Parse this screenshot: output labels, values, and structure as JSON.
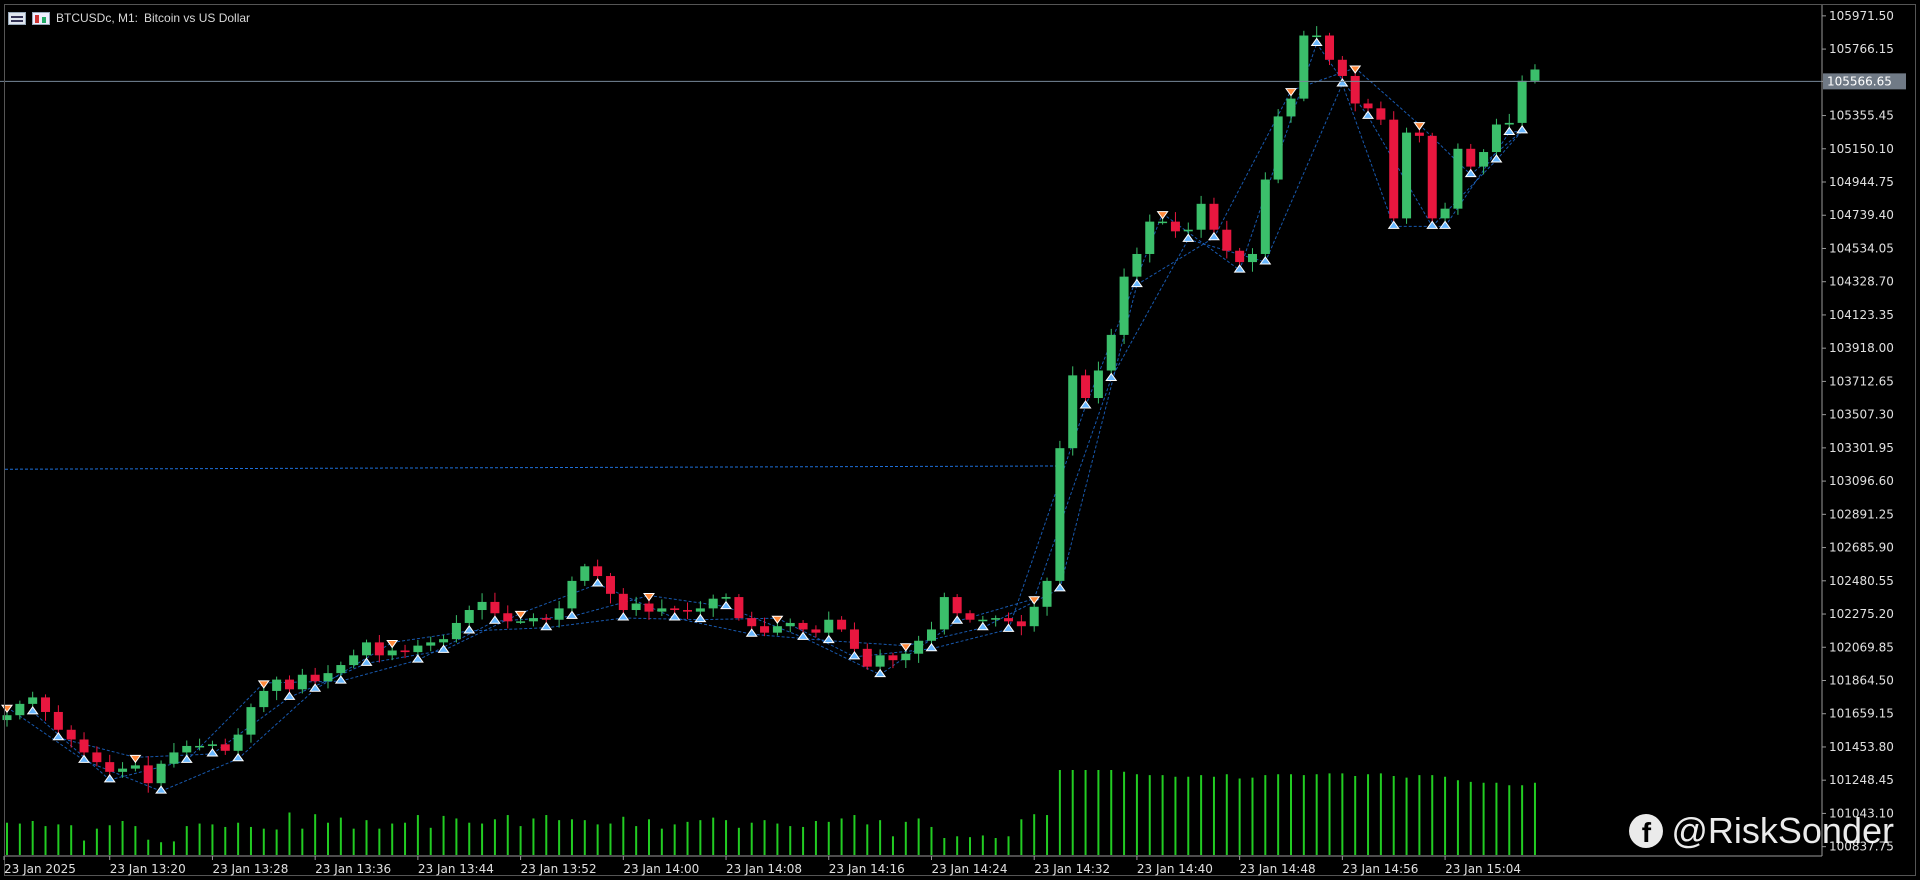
{
  "header": {
    "symbol_label": "BTCUSDc, M1:",
    "description": "Bitcoin vs US Dollar"
  },
  "watermark": {
    "icon": "facebook-icon",
    "text": "@RiskSonder"
  },
  "colors": {
    "background": "#000000",
    "bull": "#3bbf6b",
    "bear": "#e8173f",
    "volume": "#22cc22",
    "trend_line": "#1e6fd9",
    "axis_text": "#e0e0e0",
    "price_line": "#778899"
  },
  "chart_data": {
    "type": "candlestick",
    "timeframe": "M1",
    "current_price": 105566.65,
    "x_tick_labels": [
      "23 Jan 2025",
      "23 Jan 13:20",
      "23 Jan 13:28",
      "23 Jan 13:36",
      "23 Jan 13:44",
      "23 Jan 13:52",
      "23 Jan 14:00",
      "23 Jan 14:08",
      "23 Jan 14:16",
      "23 Jan 14:24",
      "23 Jan 14:32",
      "23 Jan 14:40",
      "23 Jan 14:48",
      "23 Jan 14:56",
      "23 Jan 15:04"
    ],
    "y_tick_labels": [
      "105971.50",
      "105766.15",
      "105566.65",
      "105355.45",
      "105150.10",
      "104944.75",
      "104739.40",
      "104534.05",
      "104328.70",
      "104123.35",
      "103918.00",
      "103712.65",
      "103507.30",
      "103301.95",
      "103096.60",
      "102891.25",
      "102685.90",
      "102480.55",
      "102275.20",
      "102069.85",
      "101864.50",
      "101659.15",
      "101453.80",
      "101248.45",
      "101043.10",
      "100837.75"
    ],
    "ylim": [
      100780,
      106020
    ],
    "closes": [
      101650,
      101720,
      101760,
      101670,
      101560,
      101500,
      101420,
      101360,
      101300,
      101320,
      101340,
      101230,
      101350,
      101420,
      101460,
      101460,
      101470,
      101430,
      101530,
      101700,
      101800,
      101870,
      101810,
      101900,
      101860,
      101910,
      101960,
      102020,
      102100,
      102020,
      102050,
      102040,
      102080,
      102100,
      102120,
      102220,
      102300,
      102350,
      102280,
      102230,
      102230,
      102250,
      102240,
      102310,
      102480,
      102570,
      102510,
      102400,
      102300,
      102340,
      102290,
      102310,
      102300,
      102290,
      102310,
      102370,
      102380,
      102250,
      102200,
      102160,
      102200,
      102220,
      102180,
      102160,
      102240,
      102180,
      102060,
      101950,
      102020,
      101990,
      102030,
      102110,
      102180,
      102380,
      102280,
      102240,
      102240,
      102250,
      102230,
      102200,
      102320,
      102480,
      103300,
      103750,
      103610,
      103780,
      104000,
      104360,
      104500,
      104700,
      104700,
      104640,
      104650,
      104810,
      104650,
      104520,
      104450,
      104500,
      104960,
      105350,
      105460,
      105850,
      105850,
      105700,
      105600,
      105430,
      105400,
      105330,
      104720,
      105250,
      105230,
      104720,
      104780,
      105150,
      105040,
      105130,
      105300,
      105310,
      105570,
      105640
    ],
    "volume_ylim": [
      0,
      100
    ],
    "volumes": [
      38,
      37,
      40,
      34,
      36,
      35,
      17,
      31,
      35,
      40,
      34,
      18,
      15,
      16,
      34,
      37,
      36,
      33,
      38,
      33,
      31,
      30,
      50,
      31,
      48,
      38,
      44,
      31,
      41,
      31,
      37,
      38,
      47,
      32,
      46,
      43,
      38,
      37,
      42,
      47,
      34,
      43,
      47,
      41,
      42,
      41,
      36,
      37,
      45,
      34,
      42,
      31,
      36,
      39,
      41,
      44,
      41,
      32,
      38,
      41,
      37,
      34,
      33,
      40,
      39,
      43,
      47,
      36,
      41,
      22,
      39,
      43,
      33,
      20,
      22,
      21,
      23,
      20,
      22,
      42,
      48,
      47,
      100,
      100,
      100,
      100,
      100,
      98,
      95,
      94,
      94,
      92,
      92,
      94,
      92,
      95,
      90,
      91,
      94,
      95,
      95,
      94,
      95,
      96,
      96,
      93,
      95,
      96,
      93,
      91,
      94,
      94,
      92,
      88,
      86,
      85,
      85,
      82,
      82,
      85
    ]
  }
}
